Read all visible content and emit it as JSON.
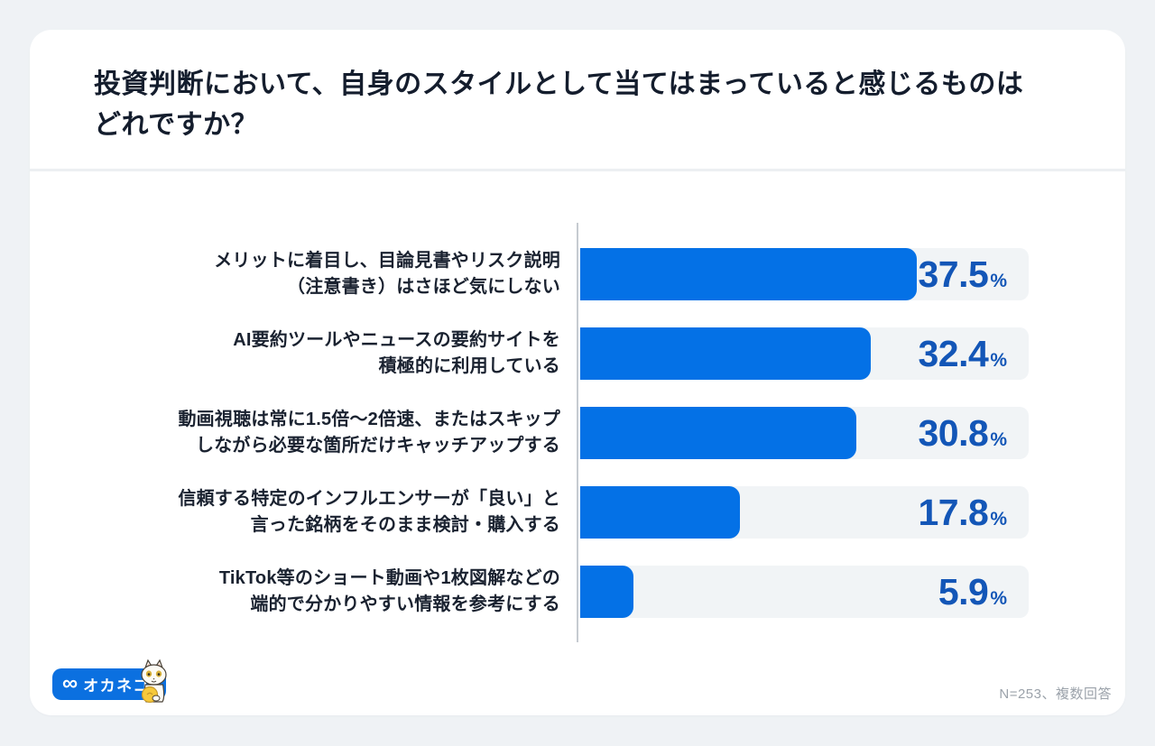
{
  "header": {
    "title_line1": "投資判断において、自身のスタイルとして当てはまっていると感じるものは",
    "title_line2": "どれですか？"
  },
  "chart_data": {
    "type": "bar",
    "orientation": "horizontal",
    "title": "投資判断において、自身のスタイルとして当てはまっていると感じるものはどれですか？",
    "unit": "%",
    "scale_max": 50,
    "categories": [
      "メリットに着目し、目論見書やリスク説明（注意書き）はさほど気にしない",
      "AI要約ツールやニュースの要約サイトを積極的に利用している",
      "動画視聴は常に1.5倍〜2倍速、またはスキップしながら必要な箇所だけキャッチアップする",
      "信頼する特定のインフルエンサーが「良い」と言った銘柄をそのまま検討・購入する",
      "TikTok等のショート動画や1枚図解などの端的で分かりやすい情報を参考にする"
    ],
    "values": [
      37.5,
      32.4,
      30.8,
      17.8,
      5.9
    ],
    "rows": [
      {
        "lines": [
          "メリットに着目し、目論見書やリスク説明",
          "（注意書き）はさほど気にしない"
        ],
        "value": 37.5,
        "value_label": "37.5"
      },
      {
        "lines": [
          "AI要約ツールやニュースの要約サイトを",
          "積極的に利用している"
        ],
        "value": 32.4,
        "value_label": "32.4"
      },
      {
        "lines": [
          "動画視聴は常に1.5倍〜2倍速、またはスキップ",
          "しながら必要な箇所だけキャッチアップする"
        ],
        "value": 30.8,
        "value_label": "30.8"
      },
      {
        "lines": [
          "信頼する特定のインフルエンサーが「良い」と",
          "言った銘柄をそのまま検討・購入する"
        ],
        "value": 17.8,
        "value_label": "17.8"
      },
      {
        "lines": [
          "TikTok等のショート動画や1枚図解などの",
          "端的で分かりやすい情報を参考にする"
        ],
        "value": 5.9,
        "value_label": "5.9"
      }
    ],
    "colors": {
      "bar": "#0471E6",
      "track": "#F1F4F6",
      "value_text": "#1356B7",
      "axis": "#C6CBD1"
    },
    "legend": null,
    "grid": false
  },
  "footer": {
    "note": "N=253、複数回答",
    "logo": {
      "infinity_icon": "∞",
      "text": "オカネコ"
    }
  }
}
